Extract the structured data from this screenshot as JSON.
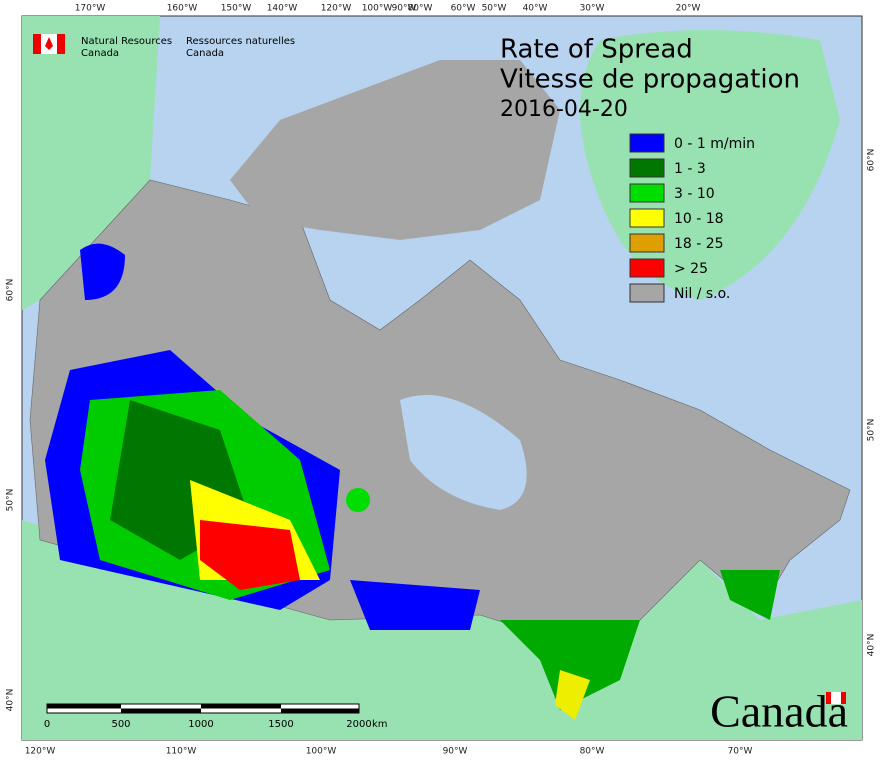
{
  "header": {
    "agency_en": [
      "Natural Resources",
      "Canada"
    ],
    "agency_fr": [
      "Ressources naturelles",
      "Canada"
    ]
  },
  "title": {
    "line1": "Rate of Spread",
    "line2": "Vitesse de propagation",
    "date": "2016-04-20"
  },
  "legend": [
    {
      "label": "0 - 1 m/min",
      "color": "#0000ff"
    },
    {
      "label": "1 - 3",
      "color": "#007700"
    },
    {
      "label": "3 - 10",
      "color": "#00dd00"
    },
    {
      "label": "10 - 18",
      "color": "#ffff00"
    },
    {
      "label": "18 - 25",
      "color": "#dda000"
    },
    {
      "label": "> 25",
      "color": "#ff0000"
    },
    {
      "label": "Nil / s.o.",
      "color": "#a6a6a6"
    }
  ],
  "graticule": {
    "top": [
      "170°W",
      "160°W",
      "150°W",
      "140°W",
      "120°W",
      "100°W",
      "90°W",
      "80°W",
      "60°W",
      "50°W",
      "40°W",
      "30°W",
      "20°W"
    ],
    "bottom": [
      "120°W",
      "110°W",
      "100°W",
      "90°W",
      "80°W",
      "70°W"
    ],
    "left": [
      "60°N",
      "50°N",
      "40°N"
    ],
    "right": [
      "60°N",
      "50°N",
      "40°N"
    ]
  },
  "scale_bar": {
    "labels": [
      "0",
      "500",
      "1000",
      "1500",
      "2000"
    ],
    "unit": "km"
  },
  "wordmark": "Canada"
}
